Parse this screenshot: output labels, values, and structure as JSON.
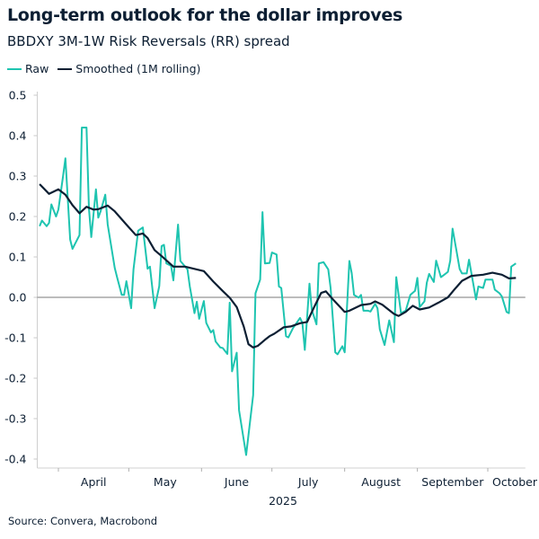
{
  "chart_data": {
    "type": "line",
    "title": "Long-term outlook for the dollar improves",
    "subtitle": "BBDXY 3M-1W Risk Reversals (RR) spread",
    "xlabel": "2025",
    "ylabel": "",
    "source": "Source: Convera, Macrobond",
    "legend_position": "top-left",
    "grid": false,
    "ylim": [
      -0.4,
      0.5
    ],
    "y_ticks": [
      "0.5",
      "0.4",
      "0.3",
      "0.2",
      "0.1",
      "0.0",
      "-0.1",
      "-0.2",
      "-0.3",
      "-0.4"
    ],
    "y_tick_values": [
      0.5,
      0.4,
      0.3,
      0.2,
      0.1,
      0.0,
      -0.1,
      -0.2,
      -0.3,
      -0.4
    ],
    "xlim": [
      "2025-03-23",
      "2025-10-17"
    ],
    "x_month_boundaries": [
      "2025-04-01",
      "2025-05-01",
      "2025-06-01",
      "2025-07-01",
      "2025-08-01",
      "2025-09-01",
      "2025-10-01",
      "2025-11-01"
    ],
    "x_tick_labels": [
      "April",
      "May",
      "June",
      "July",
      "August",
      "September",
      "October"
    ],
    "series": [
      {
        "name": "Raw",
        "color": "#1ec4b0",
        "points": [
          [
            "2025-03-24",
            0.176
          ],
          [
            "2025-03-25",
            0.19
          ],
          [
            "2025-03-27",
            0.176
          ],
          [
            "2025-03-28",
            0.184
          ],
          [
            "2025-03-29",
            0.23
          ],
          [
            "2025-03-31",
            0.2
          ],
          [
            "2025-04-01",
            0.217
          ],
          [
            "2025-04-03",
            0.3
          ],
          [
            "2025-04-04",
            0.344
          ],
          [
            "2025-04-06",
            0.143
          ],
          [
            "2025-04-07",
            0.12
          ],
          [
            "2025-04-10",
            0.154
          ],
          [
            "2025-04-11",
            0.42
          ],
          [
            "2025-04-13",
            0.42
          ],
          [
            "2025-04-14",
            0.22
          ],
          [
            "2025-04-15",
            0.149
          ],
          [
            "2025-04-17",
            0.267
          ],
          [
            "2025-04-18",
            0.197
          ],
          [
            "2025-04-19",
            0.213
          ],
          [
            "2025-04-21",
            0.254
          ],
          [
            "2025-04-22",
            0.18
          ],
          [
            "2025-04-25",
            0.073
          ],
          [
            "2025-04-26",
            0.05
          ],
          [
            "2025-04-28",
            0.006
          ],
          [
            "2025-04-29",
            0.006
          ],
          [
            "2025-04-30",
            0.04
          ],
          [
            "2025-05-02",
            -0.027
          ],
          [
            "2025-05-03",
            0.069
          ],
          [
            "2025-05-05",
            0.165
          ],
          [
            "2025-05-07",
            0.173
          ],
          [
            "2025-05-09",
            0.071
          ],
          [
            "2025-05-10",
            0.076
          ],
          [
            "2025-05-12",
            -0.027
          ],
          [
            "2025-05-14",
            0.028
          ],
          [
            "2025-05-15",
            0.127
          ],
          [
            "2025-05-16",
            0.13
          ],
          [
            "2025-05-17",
            0.084
          ],
          [
            "2025-05-19",
            0.078
          ],
          [
            "2025-05-20",
            0.042
          ],
          [
            "2025-05-22",
            0.18
          ],
          [
            "2025-05-23",
            0.09
          ],
          [
            "2025-05-26",
            0.069
          ],
          [
            "2025-05-27",
            0.027
          ],
          [
            "2025-05-29",
            -0.039
          ],
          [
            "2025-05-30",
            -0.011
          ],
          [
            "2025-05-31",
            -0.053
          ],
          [
            "2025-06-02",
            -0.009
          ],
          [
            "2025-06-03",
            -0.063
          ],
          [
            "2025-06-05",
            -0.087
          ],
          [
            "2025-06-06",
            -0.081
          ],
          [
            "2025-06-07",
            -0.109
          ],
          [
            "2025-06-09",
            -0.124
          ],
          [
            "2025-06-10",
            -0.125
          ],
          [
            "2025-06-12",
            -0.14
          ],
          [
            "2025-06-13",
            -0.013
          ],
          [
            "2025-06-14",
            -0.183
          ],
          [
            "2025-06-16",
            -0.137
          ],
          [
            "2025-06-17",
            -0.279
          ],
          [
            "2025-06-20",
            -0.39
          ],
          [
            "2025-06-23",
            -0.242
          ],
          [
            "2025-06-24",
            0.01
          ],
          [
            "2025-06-26",
            0.044
          ],
          [
            "2025-06-27",
            0.211
          ],
          [
            "2025-06-28",
            0.084
          ],
          [
            "2025-06-30",
            0.085
          ],
          [
            "2025-07-01",
            0.111
          ],
          [
            "2025-07-03",
            0.106
          ],
          [
            "2025-07-04",
            0.027
          ],
          [
            "2025-07-05",
            0.023
          ],
          [
            "2025-07-07",
            -0.096
          ],
          [
            "2025-07-08",
            -0.099
          ],
          [
            "2025-07-10",
            -0.076
          ],
          [
            "2025-07-13",
            -0.051
          ],
          [
            "2025-07-14",
            -0.063
          ],
          [
            "2025-07-15",
            -0.13
          ],
          [
            "2025-07-17",
            0.034
          ],
          [
            "2025-07-18",
            -0.031
          ],
          [
            "2025-07-20",
            -0.067
          ],
          [
            "2025-07-21",
            0.084
          ],
          [
            "2025-07-23",
            0.087
          ],
          [
            "2025-07-25",
            0.069
          ],
          [
            "2025-07-26",
            0.024
          ],
          [
            "2025-07-28",
            -0.136
          ],
          [
            "2025-07-29",
            -0.141
          ],
          [
            "2025-07-31",
            -0.121
          ],
          [
            "2025-08-01",
            -0.136
          ],
          [
            "2025-08-03",
            0.09
          ],
          [
            "2025-08-04",
            0.06
          ],
          [
            "2025-08-05",
            0.006
          ],
          [
            "2025-08-07",
            -0.001
          ],
          [
            "2025-08-08",
            0.006
          ],
          [
            "2025-08-09",
            -0.033
          ],
          [
            "2025-08-11",
            -0.033
          ],
          [
            "2025-08-12",
            -0.035
          ],
          [
            "2025-08-14",
            -0.016
          ],
          [
            "2025-08-15",
            -0.027
          ],
          [
            "2025-08-16",
            -0.079
          ],
          [
            "2025-08-18",
            -0.118
          ],
          [
            "2025-08-19",
            -0.087
          ],
          [
            "2025-08-20",
            -0.057
          ],
          [
            "2025-08-22",
            -0.111
          ],
          [
            "2025-08-23",
            0.05
          ],
          [
            "2025-08-25",
            -0.039
          ],
          [
            "2025-08-26",
            -0.036
          ],
          [
            "2025-08-27",
            -0.033
          ],
          [
            "2025-08-29",
            0.006
          ],
          [
            "2025-08-31",
            0.016
          ],
          [
            "2025-09-01",
            0.048
          ],
          [
            "2025-09-02",
            -0.024
          ],
          [
            "2025-09-04",
            -0.01
          ],
          [
            "2025-09-05",
            0.036
          ],
          [
            "2025-09-06",
            0.058
          ],
          [
            "2025-09-08",
            0.038
          ],
          [
            "2025-09-09",
            0.091
          ],
          [
            "2025-09-11",
            0.05
          ],
          [
            "2025-09-12",
            0.054
          ],
          [
            "2025-09-14",
            0.063
          ],
          [
            "2025-09-15",
            0.091
          ],
          [
            "2025-09-16",
            0.17
          ],
          [
            "2025-09-19",
            0.07
          ],
          [
            "2025-09-20",
            0.059
          ],
          [
            "2025-09-22",
            0.059
          ],
          [
            "2025-09-23",
            0.093
          ],
          [
            "2025-09-26",
            -0.005
          ],
          [
            "2025-09-27",
            0.027
          ],
          [
            "2025-09-29",
            0.023
          ],
          [
            "2025-09-30",
            0.044
          ],
          [
            "2025-10-03",
            0.044
          ],
          [
            "2025-10-04",
            0.019
          ],
          [
            "2025-10-06",
            0.01
          ],
          [
            "2025-10-07",
            0.002
          ],
          [
            "2025-10-09",
            -0.036
          ],
          [
            "2025-10-10",
            -0.039
          ],
          [
            "2025-10-11",
            0.076
          ],
          [
            "2025-10-13",
            0.084
          ]
        ]
      },
      {
        "name": "Smoothed (1M rolling)",
        "color": "#0d1f33",
        "points": [
          [
            "2025-03-24",
            0.28
          ],
          [
            "2025-03-28",
            0.256
          ],
          [
            "2025-04-01",
            0.267
          ],
          [
            "2025-04-04",
            0.254
          ],
          [
            "2025-04-07",
            0.228
          ],
          [
            "2025-04-10",
            0.208
          ],
          [
            "2025-04-13",
            0.224
          ],
          [
            "2025-04-16",
            0.217
          ],
          [
            "2025-04-18",
            0.218
          ],
          [
            "2025-04-22",
            0.227
          ],
          [
            "2025-04-25",
            0.213
          ],
          [
            "2025-04-30",
            0.18
          ],
          [
            "2025-05-04",
            0.154
          ],
          [
            "2025-05-07",
            0.158
          ],
          [
            "2025-05-09",
            0.147
          ],
          [
            "2025-05-12",
            0.117
          ],
          [
            "2025-05-15",
            0.102
          ],
          [
            "2025-05-20",
            0.076
          ],
          [
            "2025-05-25",
            0.076
          ],
          [
            "2025-06-02",
            0.065
          ],
          [
            "2025-06-06",
            0.039
          ],
          [
            "2025-06-10",
            0.016
          ],
          [
            "2025-06-13",
            -0.001
          ],
          [
            "2025-06-16",
            -0.024
          ],
          [
            "2025-06-19",
            -0.072
          ],
          [
            "2025-06-21",
            -0.116
          ],
          [
            "2025-06-23",
            -0.124
          ],
          [
            "2025-06-25",
            -0.12
          ],
          [
            "2025-06-28",
            -0.105
          ],
          [
            "2025-06-30",
            -0.096
          ],
          [
            "2025-07-02",
            -0.09
          ],
          [
            "2025-07-06",
            -0.074
          ],
          [
            "2025-07-09",
            -0.072
          ],
          [
            "2025-07-13",
            -0.064
          ],
          [
            "2025-07-16",
            -0.061
          ],
          [
            "2025-07-19",
            -0.024
          ],
          [
            "2025-07-22",
            0.011
          ],
          [
            "2025-07-24",
            0.015
          ],
          [
            "2025-07-27",
            -0.005
          ],
          [
            "2025-08-01",
            -0.036
          ],
          [
            "2025-08-03",
            -0.033
          ],
          [
            "2025-08-08",
            -0.019
          ],
          [
            "2025-08-12",
            -0.016
          ],
          [
            "2025-08-14",
            -0.01
          ],
          [
            "2025-08-17",
            -0.018
          ],
          [
            "2025-08-22",
            -0.041
          ],
          [
            "2025-08-24",
            -0.046
          ],
          [
            "2025-08-27",
            -0.036
          ],
          [
            "2025-08-30",
            -0.021
          ],
          [
            "2025-09-02",
            -0.03
          ],
          [
            "2025-09-06",
            -0.025
          ],
          [
            "2025-09-10",
            -0.013
          ],
          [
            "2025-09-14",
            0.0
          ],
          [
            "2025-09-17",
            0.021
          ],
          [
            "2025-09-20",
            0.041
          ],
          [
            "2025-09-24",
            0.053
          ],
          [
            "2025-09-29",
            0.056
          ],
          [
            "2025-10-03",
            0.061
          ],
          [
            "2025-10-07",
            0.056
          ],
          [
            "2025-10-10",
            0.047
          ],
          [
            "2025-10-13",
            0.048
          ]
        ]
      }
    ]
  }
}
